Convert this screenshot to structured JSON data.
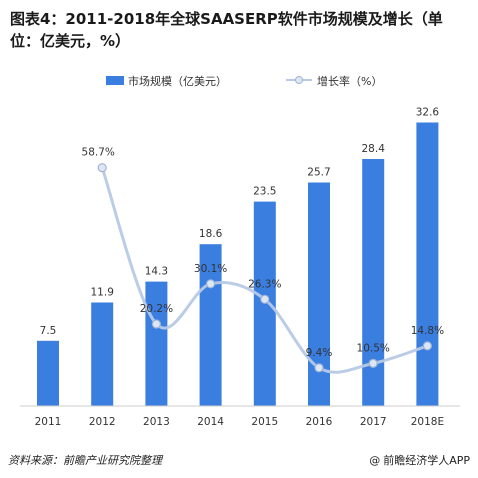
{
  "title": "图表4：2011-2018年全球SAASERP软件市场规模及增长（单位：亿美元，%）",
  "footer": {
    "source": "资料来源：前瞻产业研究院整理",
    "brand": "前瞻经济学人APP",
    "brand_symbol": "@"
  },
  "colors": {
    "bar": "#3a7ee0",
    "line": "#b7c9e6",
    "marker_fill": "#dde6f3",
    "marker_stroke": "#9fb4d6"
  },
  "chart_data": {
    "type": "bar",
    "categories": [
      "2011",
      "2012",
      "2013",
      "2014",
      "2015",
      "2016",
      "2017",
      "2018E"
    ],
    "series": [
      {
        "name": "市场规模（亿美元）",
        "type": "bar",
        "values": [
          7.5,
          11.9,
          14.3,
          18.6,
          23.5,
          25.7,
          28.4,
          32.6
        ],
        "labels": [
          "7.5",
          "11.9",
          "14.3",
          "18.6",
          "23.5",
          "25.7",
          "28.4",
          "32.6"
        ],
        "ylim": [
          0,
          33
        ]
      },
      {
        "name": "增长率（%）",
        "type": "line",
        "values": [
          null,
          58.7,
          20.2,
          30.1,
          26.3,
          9.4,
          10.5,
          14.8
        ],
        "labels": [
          "",
          "58.7%",
          "20.2%",
          "30.1%",
          "26.3%",
          "9.4%",
          "10.5%",
          "14.8%"
        ],
        "ylim": [
          0,
          68
        ]
      }
    ],
    "legend_position": "top-center",
    "grid": false
  }
}
